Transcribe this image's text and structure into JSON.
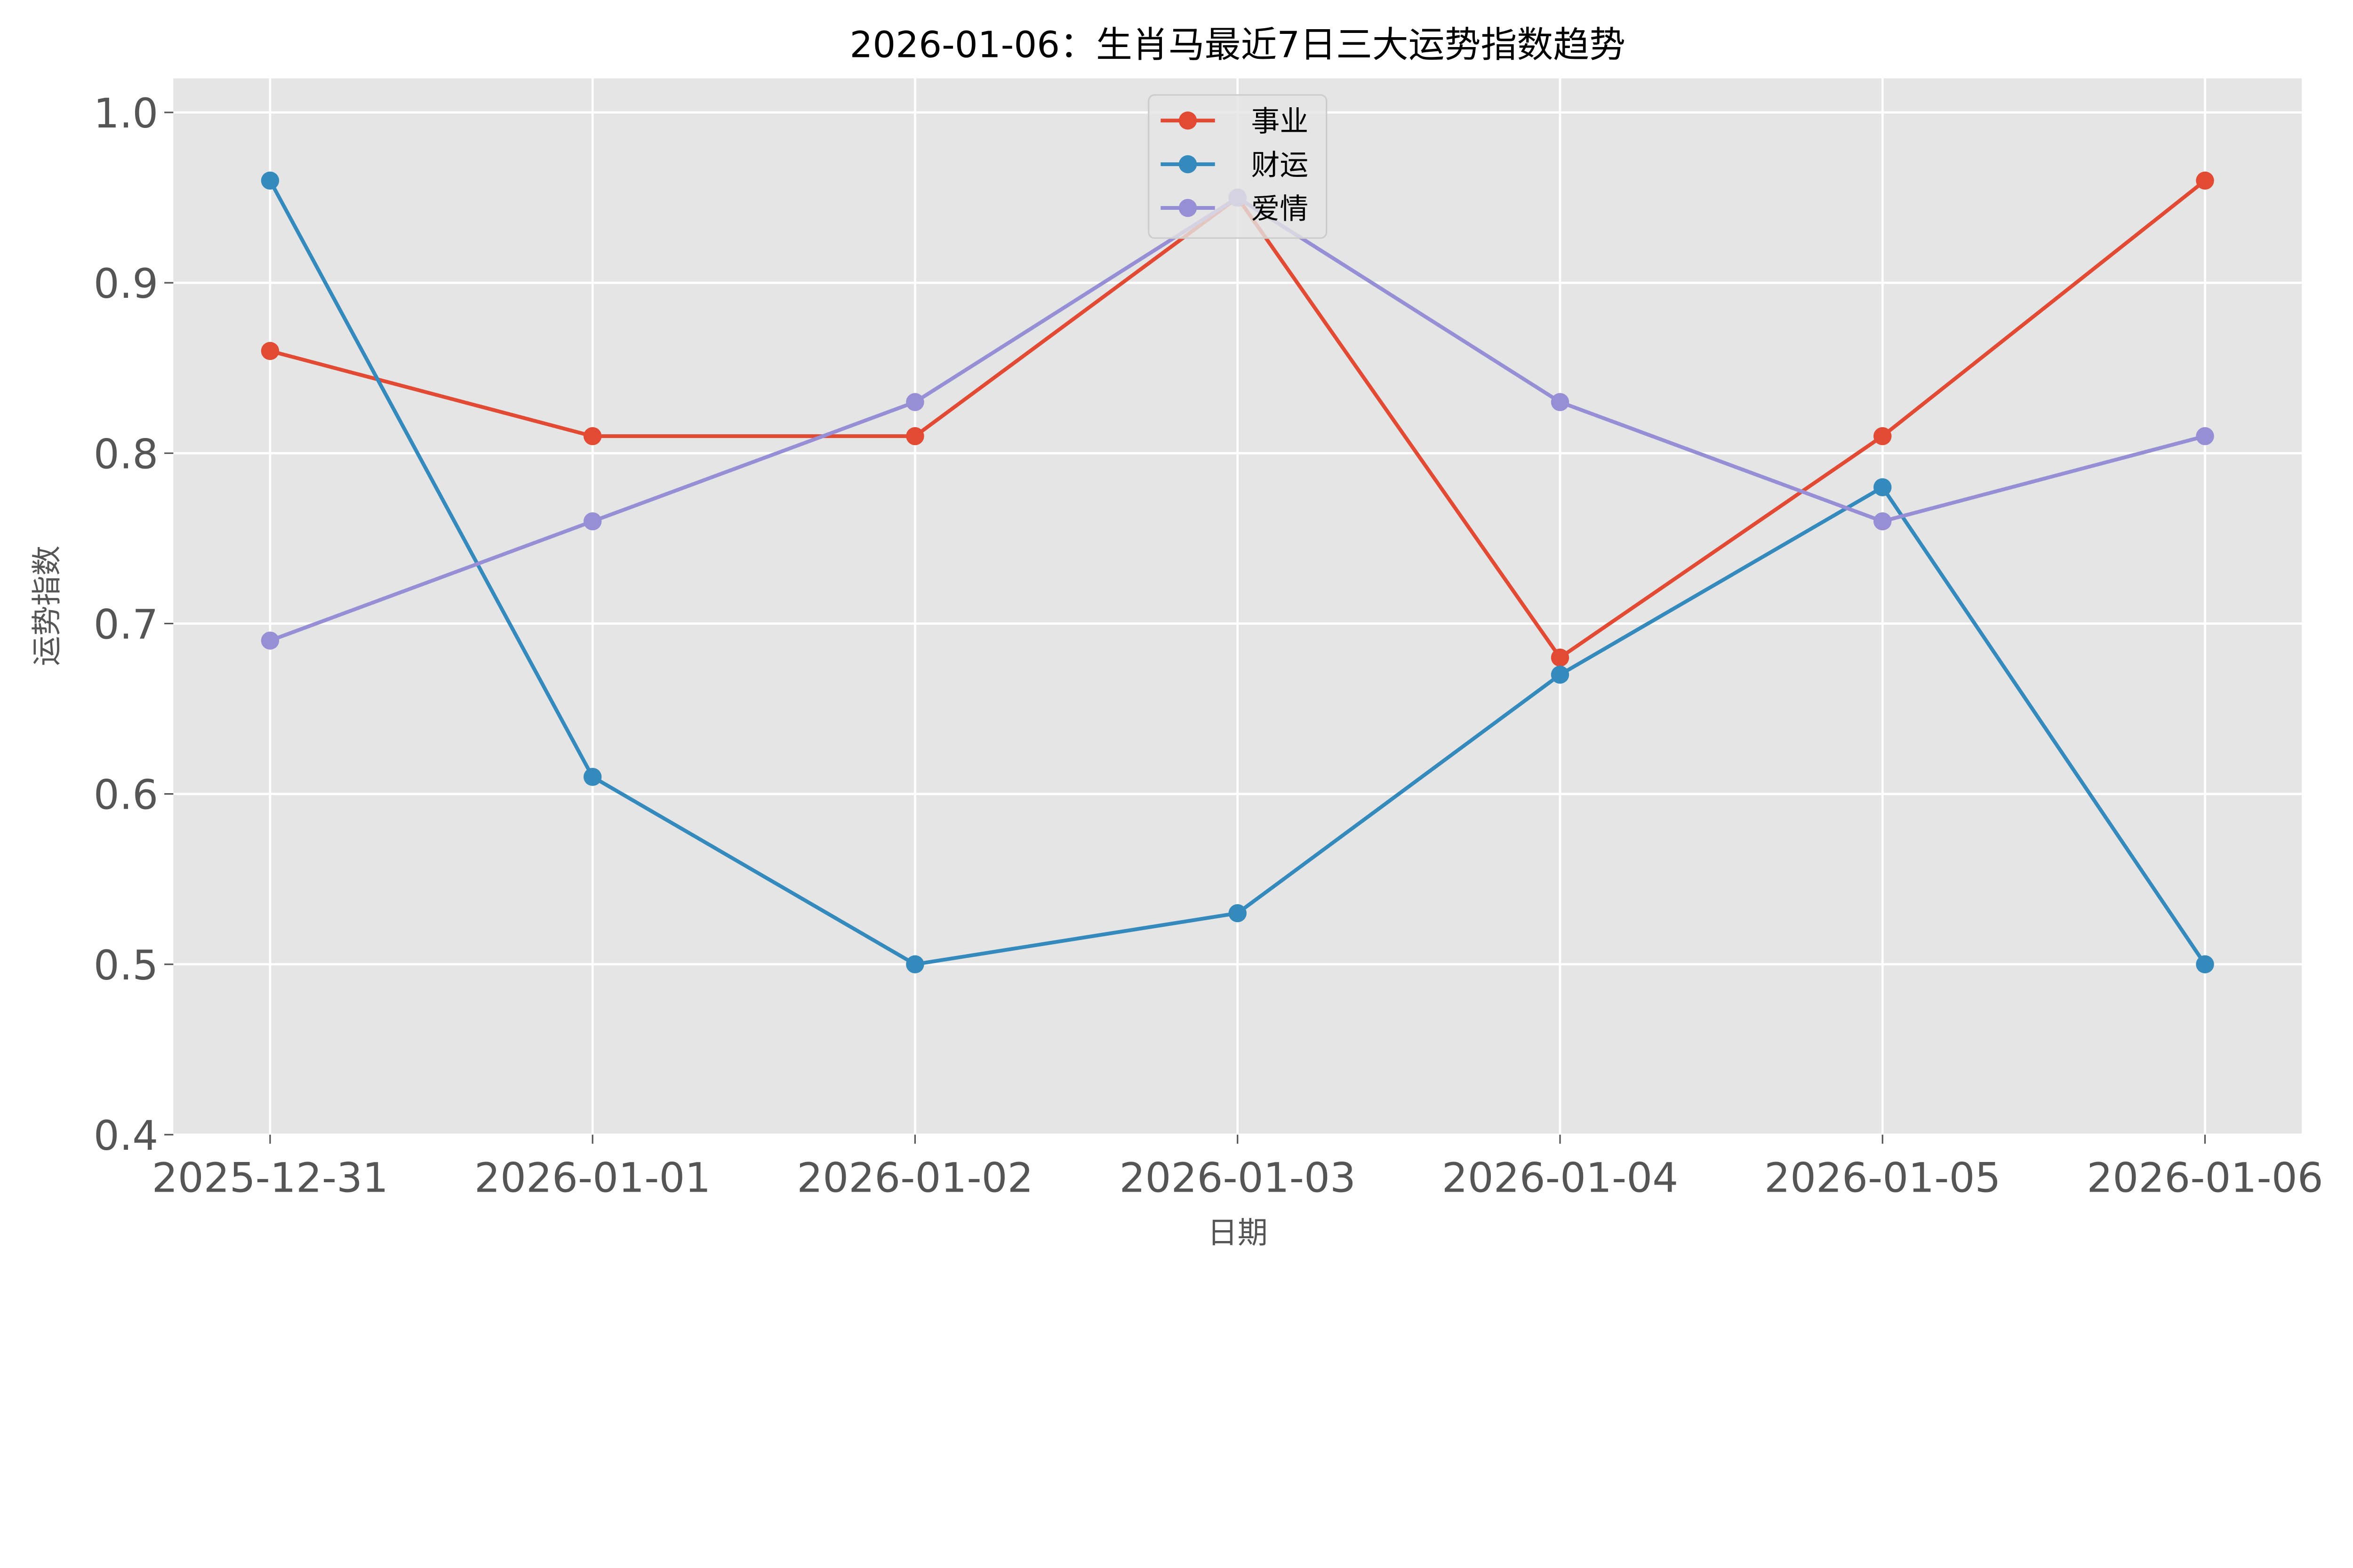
{
  "chart_data": {
    "type": "line",
    "title": "2026-01-06：生肖马最近7日三大运势指数趋势",
    "xlabel": "日期",
    "ylabel": "运势指数",
    "categories": [
      "2025-12-31",
      "2026-01-01",
      "2026-01-02",
      "2026-01-03",
      "2026-01-04",
      "2026-01-05",
      "2026-01-06"
    ],
    "ylim": [
      0.4,
      1.02
    ],
    "yticks": [
      "0.4",
      "0.5",
      "0.6",
      "0.7",
      "0.8",
      "0.9",
      "1.0"
    ],
    "grid": true,
    "legend_position": "top-center",
    "series": [
      {
        "name": "事业",
        "color": "#E24A33",
        "values": [
          0.86,
          0.81,
          0.81,
          0.95,
          0.68,
          0.81,
          0.96
        ]
      },
      {
        "name": "财运",
        "color": "#348ABD",
        "values": [
          0.96,
          0.61,
          0.5,
          0.53,
          0.67,
          0.78,
          0.5
        ]
      },
      {
        "name": "爱情",
        "color": "#988ED5",
        "values": [
          0.69,
          0.76,
          0.83,
          0.95,
          0.83,
          0.76,
          0.81
        ]
      }
    ]
  }
}
